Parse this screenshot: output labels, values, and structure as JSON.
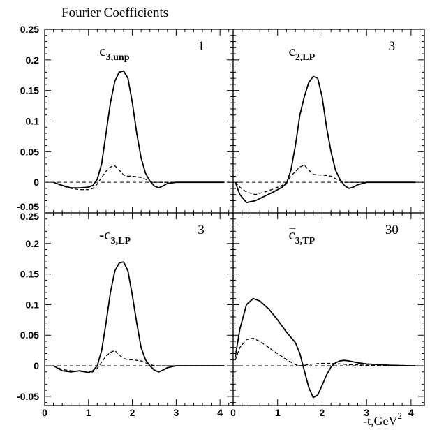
{
  "chart_data": {
    "type": "line",
    "title": "Fourier Coefficients",
    "xlabel": "-t,GeV",
    "xlabel_sup": "2",
    "shared_x_ticks": [
      "0",
      "1",
      "2",
      "3",
      "4"
    ],
    "panels": [
      {
        "id": "top-left",
        "label_prefix": "c",
        "label_sub": "3,unp",
        "bar": false,
        "factor": "1",
        "xlim": [
          0,
          4.3
        ],
        "ylim": [
          -0.05,
          0.25
        ],
        "y_ticks": [
          "0.25",
          "0.2",
          "0.15",
          "0.1",
          "0.05",
          "0",
          "-0.05"
        ],
        "series": [
          {
            "style": "solid",
            "x": [
              0.2,
              0.4,
              0.6,
              0.8,
              1.0,
              1.1,
              1.2,
              1.3,
              1.4,
              1.5,
              1.6,
              1.7,
              1.8,
              1.9,
              2.0,
              2.1,
              2.2,
              2.3,
              2.4,
              2.5,
              2.6,
              2.7,
              2.8,
              3.0,
              3.5,
              4.0,
              4.1
            ],
            "y": [
              0,
              -0.005,
              -0.009,
              -0.009,
              -0.008,
              -0.005,
              0.005,
              0.03,
              0.08,
              0.13,
              0.165,
              0.18,
              0.182,
              0.17,
              0.13,
              0.08,
              0.04,
              0.015,
              0.002,
              -0.006,
              -0.009,
              -0.006,
              -0.002,
              0,
              0,
              0,
              0
            ]
          },
          {
            "style": "dashed",
            "x": [
              0.2,
              0.4,
              0.6,
              0.8,
              1.0,
              1.1,
              1.2,
              1.3,
              1.4,
              1.5,
              1.6,
              1.7,
              1.8,
              1.9,
              2.0,
              2.1,
              2.2,
              2.3,
              2.4,
              2.5,
              2.6,
              2.8,
              3.0,
              3.5,
              4.0,
              4.1
            ],
            "y": [
              0,
              -0.006,
              -0.01,
              -0.012,
              -0.012,
              -0.01,
              -0.003,
              0.008,
              0.018,
              0.025,
              0.027,
              0.02,
              0.012,
              0.01,
              0.01,
              0.009,
              0.008,
              0.005,
              0.002,
              0,
              0,
              0,
              0,
              0,
              0,
              0
            ]
          }
        ]
      },
      {
        "id": "top-right",
        "label_prefix": "c",
        "label_sub": "2,LP",
        "bar": false,
        "factor": "3",
        "xlim": [
          0,
          4.3
        ],
        "ylim": [
          -0.05,
          0.25
        ],
        "y_ticks": [],
        "series": [
          {
            "style": "solid",
            "x": [
              0.05,
              0.15,
              0.3,
              0.5,
              0.7,
              0.9,
              1.1,
              1.2,
              1.3,
              1.4,
              1.5,
              1.6,
              1.7,
              1.8,
              1.9,
              2.0,
              2.1,
              2.2,
              2.3,
              2.4,
              2.5,
              2.6,
              2.7,
              2.8,
              3.0,
              3.5,
              4.0,
              4.1
            ],
            "y": [
              0,
              -0.02,
              -0.033,
              -0.03,
              -0.023,
              -0.016,
              -0.008,
              -0.002,
              0.02,
              0.06,
              0.11,
              0.14,
              0.163,
              0.173,
              0.17,
              0.14,
              0.09,
              0.05,
              0.02,
              0.005,
              -0.005,
              -0.01,
              -0.008,
              -0.004,
              0,
              0,
              0,
              0
            ]
          },
          {
            "style": "dashed",
            "x": [
              0.05,
              0.15,
              0.3,
              0.5,
              0.7,
              0.9,
              1.1,
              1.2,
              1.3,
              1.4,
              1.5,
              1.6,
              1.7,
              1.8,
              1.9,
              2.0,
              2.1,
              2.2,
              2.3,
              2.4,
              2.5,
              2.6,
              2.8,
              3.0,
              3.5,
              4.0,
              4.1
            ],
            "y": [
              0,
              -0.008,
              -0.016,
              -0.02,
              -0.016,
              -0.011,
              -0.005,
              0.0,
              0.01,
              0.018,
              0.025,
              0.028,
              0.02,
              0.013,
              0.012,
              0.012,
              0.011,
              0.01,
              0.006,
              0.003,
              0,
              0,
              0,
              0,
              0,
              0,
              0
            ]
          }
        ]
      },
      {
        "id": "bottom-left",
        "label_prefix": "-c",
        "label_sub": "3,LP",
        "bar": false,
        "factor": "3",
        "xlim": [
          0,
          4.3
        ],
        "ylim": [
          -0.065,
          0.25
        ],
        "y_ticks": [
          "0.25",
          "0.2",
          "0.15",
          "0.1",
          "0.05",
          "0",
          "-0.05"
        ],
        "series": [
          {
            "style": "solid",
            "x": [
              0.2,
              0.4,
              0.6,
              0.8,
              1.0,
              1.1,
              1.2,
              1.3,
              1.4,
              1.5,
              1.6,
              1.7,
              1.8,
              1.9,
              2.0,
              2.1,
              2.2,
              2.3,
              2.4,
              2.5,
              2.6,
              2.7,
              2.8,
              3.0,
              3.5,
              4.0,
              4.1
            ],
            "y": [
              0,
              -0.008,
              -0.01,
              -0.008,
              -0.011,
              -0.008,
              0.0,
              0.025,
              0.07,
              0.12,
              0.155,
              0.168,
              0.17,
              0.155,
              0.115,
              0.07,
              0.03,
              0.01,
              0.0,
              -0.007,
              -0.01,
              -0.007,
              -0.003,
              0,
              0,
              0,
              0
            ]
          },
          {
            "style": "dashed",
            "x": [
              0.2,
              0.4,
              0.6,
              0.8,
              1.0,
              1.1,
              1.2,
              1.3,
              1.4,
              1.5,
              1.6,
              1.7,
              1.8,
              1.9,
              2.0,
              2.1,
              2.2,
              2.3,
              2.4,
              2.5,
              2.6,
              2.8,
              3.0,
              3.5,
              4.0,
              4.1
            ],
            "y": [
              0,
              -0.006,
              -0.008,
              -0.009,
              -0.011,
              -0.01,
              -0.004,
              0.006,
              0.016,
              0.022,
              0.025,
              0.018,
              0.012,
              0.01,
              0.01,
              0.009,
              0.008,
              0.005,
              0.002,
              0,
              0,
              0,
              0,
              0,
              0,
              0
            ]
          }
        ]
      },
      {
        "id": "bottom-right",
        "label_prefix": "c",
        "label_sub": "3,TP",
        "bar": true,
        "factor": "30",
        "xlim": [
          0,
          4.3
        ],
        "ylim": [
          -0.065,
          0.25
        ],
        "y_ticks": [],
        "series": [
          {
            "style": "solid",
            "x": [
              0.05,
              0.15,
              0.3,
              0.45,
              0.6,
              0.8,
              1.0,
              1.2,
              1.4,
              1.5,
              1.6,
              1.7,
              1.8,
              1.9,
              2.0,
              2.1,
              2.2,
              2.3,
              2.4,
              2.5,
              2.6,
              2.8,
              3.0,
              3.5,
              4.0,
              4.1
            ],
            "y": [
              0.015,
              0.06,
              0.1,
              0.11,
              0.106,
              0.093,
              0.075,
              0.055,
              0.038,
              0.02,
              -0.008,
              -0.035,
              -0.052,
              -0.048,
              -0.032,
              -0.015,
              -0.002,
              0.005,
              0.008,
              0.009,
              0.008,
              0.005,
              0.003,
              0.001,
              0,
              0
            ]
          },
          {
            "style": "dashed",
            "x": [
              0.05,
              0.15,
              0.3,
              0.45,
              0.6,
              0.8,
              1.0,
              1.2,
              1.4,
              1.5,
              1.6,
              1.7,
              1.8,
              2.0,
              2.2,
              2.4,
              2.6,
              3.0,
              3.5,
              4.0,
              4.1
            ],
            "y": [
              0.01,
              0.03,
              0.043,
              0.045,
              0.04,
              0.03,
              0.02,
              0.01,
              0.002,
              0.0,
              0.001,
              0.002,
              0.003,
              0.004,
              0.004,
              0.003,
              0.002,
              0.001,
              0,
              0,
              0
            ]
          }
        ]
      }
    ]
  }
}
